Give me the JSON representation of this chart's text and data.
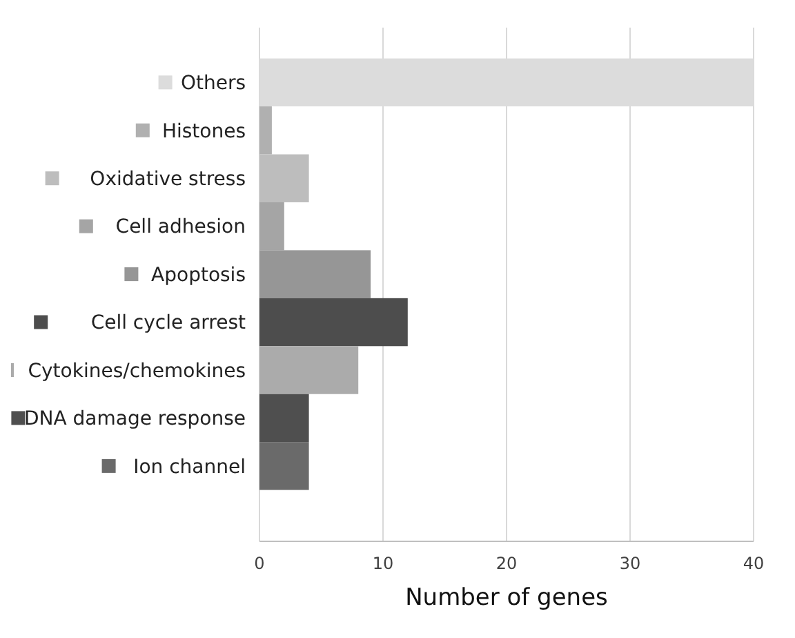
{
  "chart_data": {
    "type": "bar",
    "orientation": "horizontal",
    "xlabel": "Number of genes",
    "categories": [
      "Others",
      "Histones",
      "Oxidative stress",
      "Cell adhesion",
      "Apoptosis",
      "Cell cycle arrest",
      "Cytokines/chemokines",
      "DNA damage response",
      "Ion channel"
    ],
    "values": [
      40,
      1,
      4,
      2,
      9,
      12,
      8,
      4,
      4
    ],
    "colors": [
      "#dcdcdc",
      "#b0b0b0",
      "#bdbdbd",
      "#a5a5a5",
      "#969696",
      "#4d4d4d",
      "#ababab",
      "#4f4f4f",
      "#6a6a6a"
    ],
    "xlim": [
      0,
      40
    ],
    "xticks": [
      0,
      10,
      20,
      30,
      40
    ],
    "grid": "x"
  }
}
